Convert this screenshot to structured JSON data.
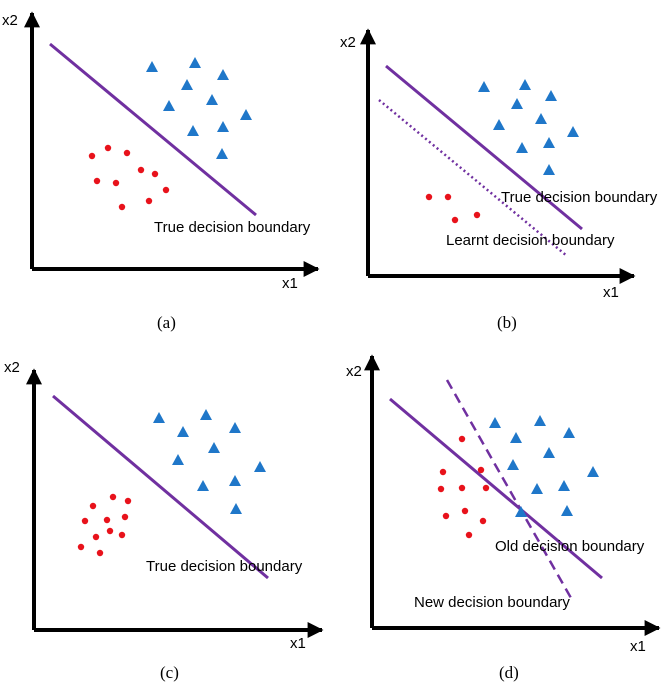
{
  "colors": {
    "axis": "#000000",
    "boundary": "#7030a0",
    "class_circle": "#e8121b",
    "class_triangle": "#1f77c9",
    "text": "#000000"
  },
  "icons": {
    "class_a_marker": "red-dot-icon",
    "class_b_marker": "blue-triangle-icon"
  },
  "panels": [
    {
      "caption": "(a)",
      "axes": {
        "x": "x1",
        "y": "x2"
      },
      "boundaries": [
        {
          "label": "True decision boundary",
          "style": "solid"
        }
      ]
    },
    {
      "caption": "(b)",
      "axes": {
        "x": "x1",
        "y": "x2"
      },
      "boundaries": [
        {
          "label": "True decision boundary",
          "style": "solid"
        },
        {
          "label": "Learnt decision boundary",
          "style": "dotted"
        }
      ]
    },
    {
      "caption": "(c)",
      "axes": {
        "x": "x1",
        "y": "x2"
      },
      "boundaries": [
        {
          "label": "True decision boundary",
          "style": "solid"
        }
      ]
    },
    {
      "caption": "(d)",
      "axes": {
        "x": "x1",
        "y": "x2"
      },
      "boundaries": [
        {
          "label": "Old decision boundary",
          "style": "solid"
        },
        {
          "label": "New decision boundary",
          "style": "dashed"
        }
      ]
    }
  ]
}
